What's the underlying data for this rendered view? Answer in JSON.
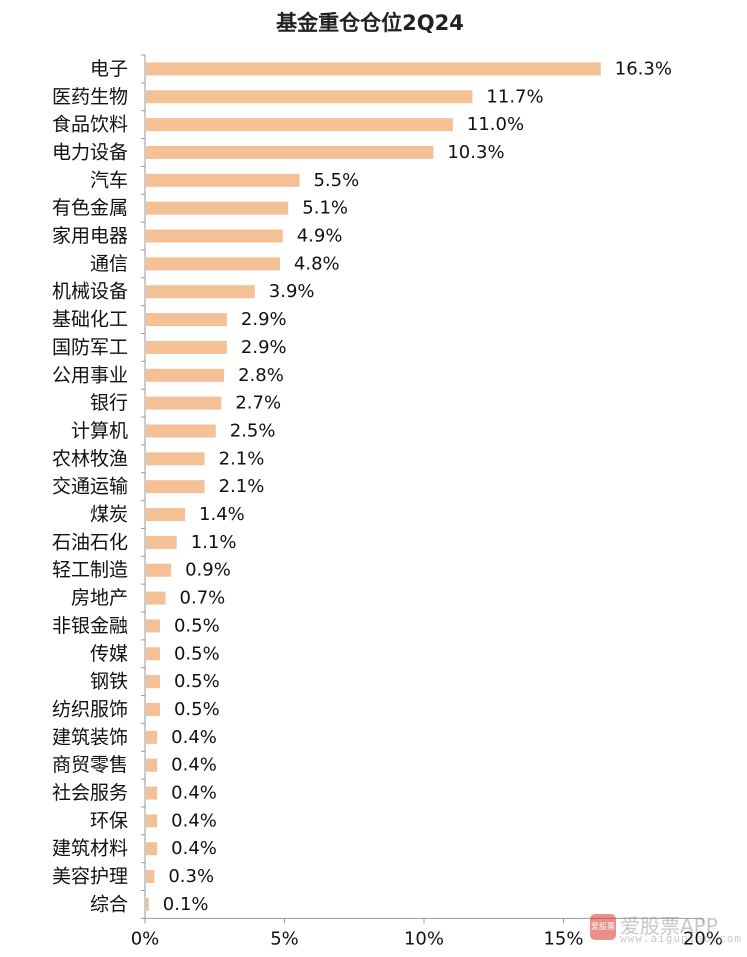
{
  "chart_data": {
    "type": "bar",
    "orientation": "horizontal",
    "title": "基金重仓仓位2Q24",
    "categories": [
      "电子",
      "医药生物",
      "食品饮料",
      "电力设备",
      "汽车",
      "有色金属",
      "家用电器",
      "通信",
      "机械设备",
      "基础化工",
      "国防军工",
      "公用事业",
      "银行",
      "计算机",
      "农林牧渔",
      "交通运输",
      "煤炭",
      "石油石化",
      "轻工制造",
      "房地产",
      "非银金融",
      "传媒",
      "钢铁",
      "纺织服饰",
      "建筑装饰",
      "商贸零售",
      "社会服务",
      "环保",
      "建筑材料",
      "美容护理",
      "综合"
    ],
    "values": [
      16.3,
      11.7,
      11.0,
      10.3,
      5.5,
      5.1,
      4.9,
      4.8,
      3.9,
      2.9,
      2.9,
      2.8,
      2.7,
      2.5,
      2.1,
      2.1,
      1.4,
      1.1,
      0.9,
      0.7,
      0.5,
      0.5,
      0.5,
      0.5,
      0.4,
      0.4,
      0.4,
      0.4,
      0.4,
      0.3,
      0.1
    ],
    "labels": [
      "16.3%",
      "11.7%",
      "11.0%",
      "10.3%",
      "5.5%",
      "5.1%",
      "4.9%",
      "4.8%",
      "3.9%",
      "2.9%",
      "2.9%",
      "2.8%",
      "2.7%",
      "2.5%",
      "2.1%",
      "2.1%",
      "1.4%",
      "1.1%",
      "0.9%",
      "0.7%",
      "0.5%",
      "0.5%",
      "0.5%",
      "0.5%",
      "0.4%",
      "0.4%",
      "0.4%",
      "0.4%",
      "0.4%",
      "0.3%",
      "0.1%"
    ],
    "xlim": [
      0,
      20
    ],
    "xticks": [
      0,
      5,
      10,
      15,
      20
    ],
    "xtick_labels": [
      "0%",
      "5%",
      "10%",
      "15%",
      "20%"
    ],
    "bar_color": "#f4c096",
    "axis_color": "#999999",
    "grid": false,
    "legend": "none"
  },
  "watermark": {
    "logo_text": "爱股票",
    "text": "爱股票APP",
    "url": "www.aigupiao.com",
    "color": "#d9352b"
  }
}
